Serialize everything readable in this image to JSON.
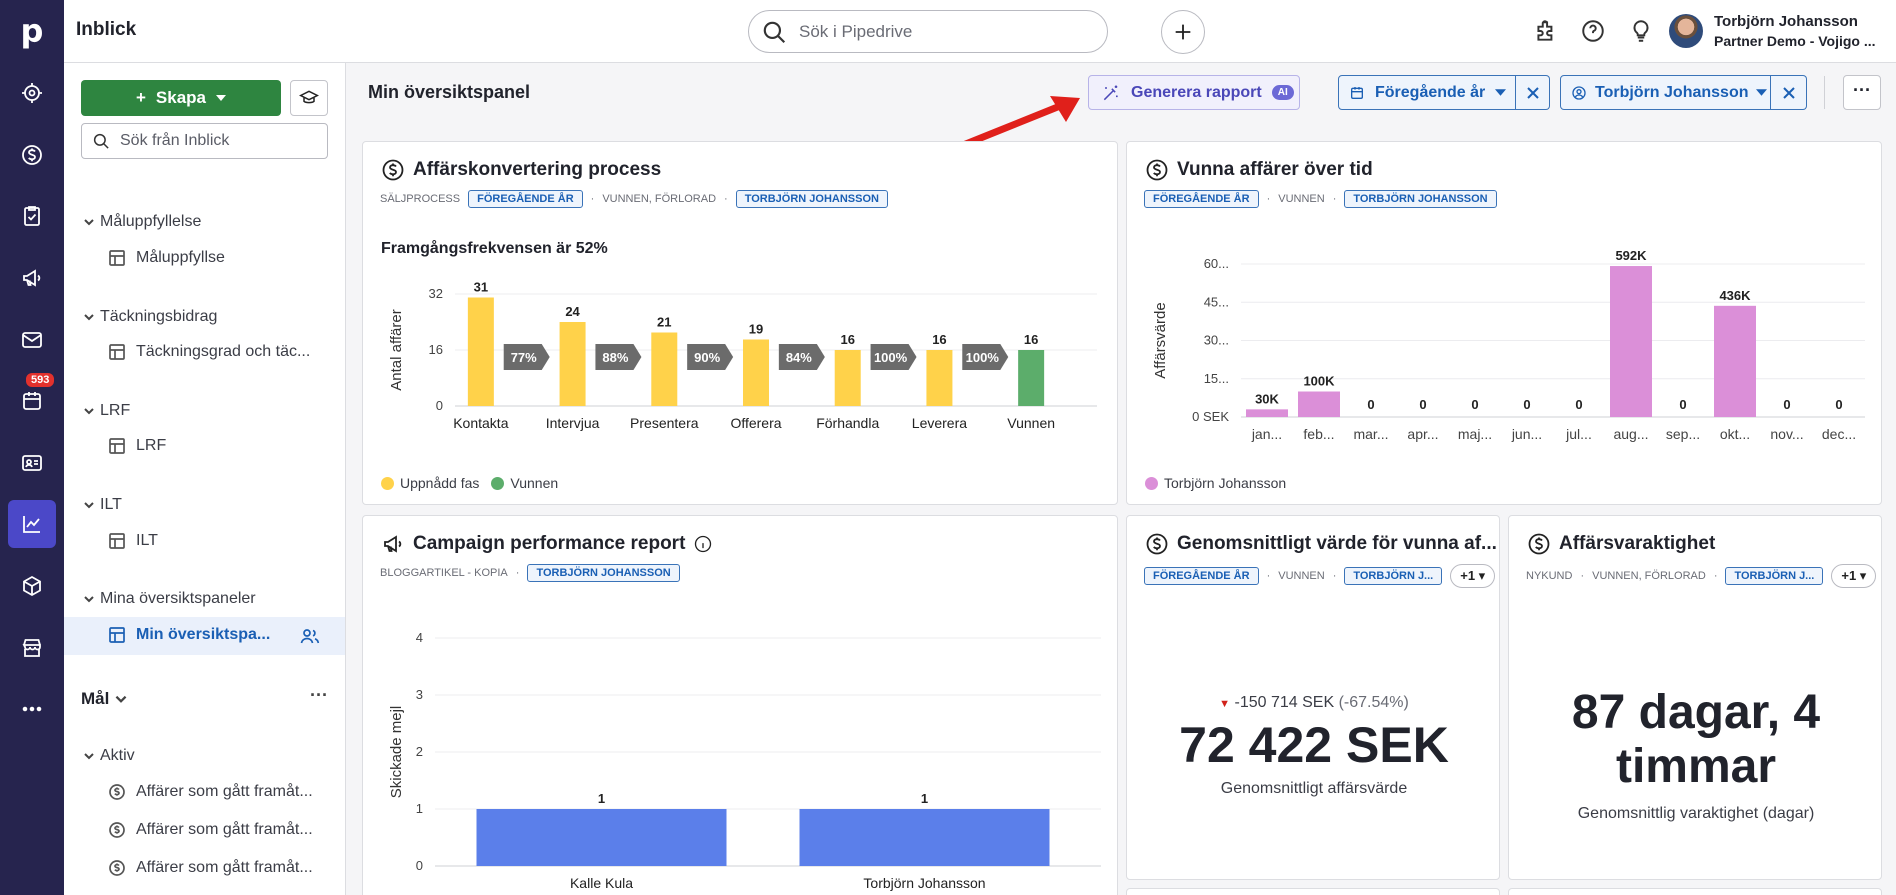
{
  "app": {
    "title": "Inblick"
  },
  "rail": {
    "logo": "p",
    "badge": "593"
  },
  "topbar": {
    "search_placeholder": "Sök i Pipedrive",
    "user_name": "Torbjörn Johansson",
    "user_company": "Partner Demo - Vojigo ..."
  },
  "sidebar": {
    "create_label": "Skapa",
    "search_placeholder": "Sök från Inblick",
    "groups": [
      {
        "label": "Måluppfyllelse",
        "item": "Måluppfyllse"
      },
      {
        "label": "Täckningsbidrag",
        "item": "Täckningsgrad och täc..."
      },
      {
        "label": "LRF",
        "item": "LRF"
      },
      {
        "label": "ILT",
        "item": "ILT"
      },
      {
        "label": "Mina översiktspaneler",
        "item": "Min översiktspa..."
      }
    ],
    "goals_label": "Mål",
    "active_label": "Aktiv",
    "goal_items": [
      "Affärer som gått framåt...",
      "Affärer som gått framåt...",
      "Affärer som gått framåt..."
    ]
  },
  "header": {
    "page_title": "Min översiktspanel",
    "generate_label": "Generera rapport",
    "ai_badge": "AI",
    "period_filter": "Föregående år",
    "user_filter": "Torbjörn Johansson",
    "more": "···"
  },
  "cards": {
    "conversion": {
      "title": "Affärskonvertering process",
      "meta1": "SÄLJPROCESS",
      "chip1": "FÖREGÅENDE ÅR",
      "meta2": "VUNNEN, FÖRLORAD",
      "chip2": "TORBJÖRN JOHANSSON",
      "headline": "Framgångsfrekvensen är 52%",
      "legend_reached": "Uppnådd fas",
      "legend_won": "Vunnen"
    },
    "won_over_time": {
      "title": "Vunna affärer över tid",
      "chip1": "FÖREGÅENDE ÅR",
      "meta1": "VUNNEN",
      "chip2": "TORBJÖRN JOHANSSON",
      "legend": "Torbjörn Johansson"
    },
    "campaign": {
      "title": "Campaign performance report",
      "meta1": "BLOGGARTIKEL - KOPIA",
      "chip1": "TORBJÖRN JOHANSSON"
    },
    "avg_value": {
      "title": "Genomsnittligt värde för vunna af...",
      "chip1": "FÖREGÅENDE ÅR",
      "meta1": "VUNNEN",
      "chip2": "TORBJÖRN J...",
      "extra": "+1",
      "change": "-150 714 SEK",
      "change_pct": "(-67.54%)",
      "value": "72 422 SEK",
      "caption": "Genomsnittligt affärsvärde"
    },
    "duration": {
      "title": "Affärsvaraktighet",
      "meta1": "NYKUND",
      "meta2": "VUNNEN, FÖRLORAD",
      "chip1": "TORBJÖRN J...",
      "extra": "+1",
      "value_line1": "87 dagar, 4",
      "value_line2": "timmar",
      "caption": "Genomsnittlig varaktighet (dagar)"
    }
  },
  "colors": {
    "yellow": "#ffd24a",
    "green": "#5cad6b",
    "pink": "#db8fd8",
    "blue": "#5b7fea",
    "gray": "#6b6b6b"
  },
  "chart_data": [
    {
      "type": "bar",
      "title": "Affärskonvertering process",
      "ylabel": "Antal affärer",
      "ylim": [
        0,
        32
      ],
      "yticks": [
        "0",
        "16",
        "32"
      ],
      "categories": [
        "Kontakta",
        "Intervjua",
        "Presentera",
        "Offerera",
        "Förhandla",
        "Leverera",
        "Vunnen"
      ],
      "values": [
        31,
        24,
        21,
        19,
        16,
        16,
        16
      ],
      "labels": [
        "31",
        "24",
        "21",
        "19",
        "16",
        "16",
        "16"
      ],
      "conversion": [
        "77%",
        "88%",
        "90%",
        "84%",
        "100%",
        "100%"
      ]
    },
    {
      "type": "bar",
      "title": "Vunna affärer över tid",
      "ylabel": "Affärsvärde",
      "ylim": [
        0,
        600000
      ],
      "yticks": [
        "0 SEK",
        "15...",
        "30...",
        "45...",
        "60..."
      ],
      "categories": [
        "jan...",
        "feb...",
        "mar...",
        "apr...",
        "maj...",
        "jun...",
        "jul...",
        "aug...",
        "sep...",
        "okt...",
        "nov...",
        "dec..."
      ],
      "values": [
        30000,
        100000,
        0,
        0,
        0,
        0,
        0,
        592000,
        0,
        436000,
        0,
        0
      ],
      "labels": [
        "30K",
        "100K",
        "0",
        "0",
        "0",
        "0",
        "0",
        "592K",
        "0",
        "436K",
        "0",
        "0"
      ]
    },
    {
      "type": "bar",
      "title": "Campaign performance report",
      "ylabel": "Skickade mejl",
      "ylim": [
        0,
        4
      ],
      "yticks": [
        "0",
        "1",
        "2",
        "3",
        "4"
      ],
      "categories": [
        "Kalle Kula",
        "Torbjörn Johansson"
      ],
      "values": [
        1,
        1
      ],
      "labels": [
        "1",
        "1"
      ]
    }
  ]
}
